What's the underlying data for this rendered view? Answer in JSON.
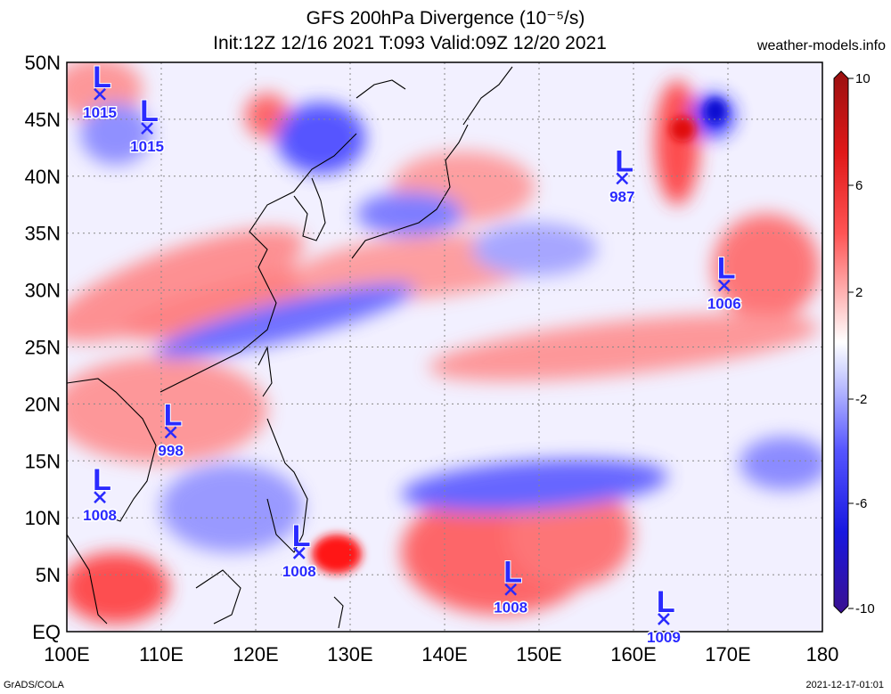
{
  "title_line1": "GFS 200hPa Divergence (10⁻⁵/s)",
  "title_line2": "Init:12Z 12/16 2021 T:093 Valid:09Z 12/20 2021",
  "site": "weather-models.info",
  "footer_left": "GrADS/COLA",
  "footer_right": "2021-12-17-01:01",
  "map": {
    "lat_labels": [
      "50N",
      "45N",
      "40N",
      "35N",
      "30N",
      "25N",
      "20N",
      "15N",
      "10N",
      "5N",
      "EQ"
    ],
    "lon_labels": [
      "100E",
      "110E",
      "120E",
      "130E",
      "140E",
      "150E",
      "160E",
      "170E",
      "180"
    ],
    "lat_values": [
      50,
      45,
      40,
      35,
      30,
      25,
      20,
      15,
      10,
      5,
      0
    ],
    "lon_values": [
      100,
      110,
      120,
      130,
      140,
      150,
      160,
      170,
      180
    ]
  },
  "lows": [
    {
      "lon": 103.5,
      "lat": 47.2,
      "pressure": "1015"
    },
    {
      "lon": 108.5,
      "lat": 44.2,
      "pressure": "1015"
    },
    {
      "lon": 158.8,
      "lat": 39.8,
      "pressure": "987"
    },
    {
      "lon": 169.6,
      "lat": 30.4,
      "pressure": "1006"
    },
    {
      "lon": 111.0,
      "lat": 17.5,
      "pressure": "998"
    },
    {
      "lon": 103.5,
      "lat": 11.8,
      "pressure": "1008"
    },
    {
      "lon": 124.6,
      "lat": 6.9,
      "pressure": "1008"
    },
    {
      "lon": 147.0,
      "lat": 3.7,
      "pressure": "1008"
    },
    {
      "lon": 163.2,
      "lat": 1.1,
      "pressure": "1009"
    }
  ],
  "colorbar": {
    "labels": [
      "10",
      "6",
      "2",
      "-2",
      "-6",
      "-10"
    ],
    "colors": [
      "#a01010",
      "#d01818",
      "#ff2a2a",
      "#ff6b6b",
      "#ffaaaa",
      "#ffdede",
      "#ffffff",
      "#dde0ff",
      "#a8a8ff",
      "#6b6bff",
      "#2b2bff",
      "#1010d0",
      "#3a1090"
    ]
  }
}
